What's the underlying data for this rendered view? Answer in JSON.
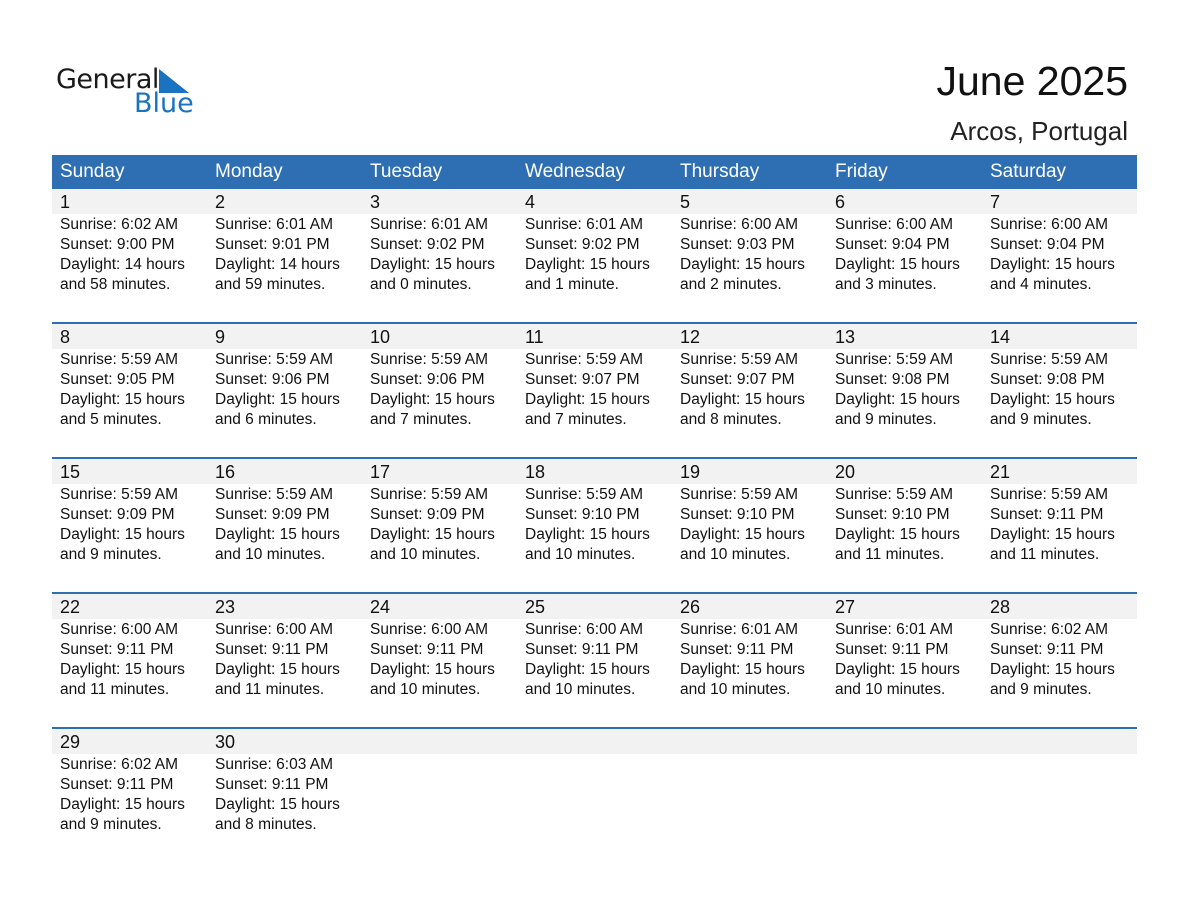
{
  "logo": {
    "word1": "General",
    "word2": "Blue",
    "color": "#1a73c0"
  },
  "title": "June 2025",
  "location": "Arcos, Portugal",
  "colors": {
    "header": "#2e6fb3",
    "band": "#f2f2f2"
  },
  "weekdays": [
    "Sunday",
    "Monday",
    "Tuesday",
    "Wednesday",
    "Thursday",
    "Friday",
    "Saturday"
  ],
  "days": [
    {
      "day": "1",
      "sunrise": "Sunrise: 6:02 AM",
      "sunset": "Sunset: 9:00 PM",
      "daylight": "Daylight: 14 hours",
      "minutes": "and 58 minutes."
    },
    {
      "day": "2",
      "sunrise": "Sunrise: 6:01 AM",
      "sunset": "Sunset: 9:01 PM",
      "daylight": "Daylight: 14 hours",
      "minutes": "and 59 minutes."
    },
    {
      "day": "3",
      "sunrise": "Sunrise: 6:01 AM",
      "sunset": "Sunset: 9:02 PM",
      "daylight": "Daylight: 15 hours",
      "minutes": "and 0 minutes."
    },
    {
      "day": "4",
      "sunrise": "Sunrise: 6:01 AM",
      "sunset": "Sunset: 9:02 PM",
      "daylight": "Daylight: 15 hours",
      "minutes": "and 1 minute."
    },
    {
      "day": "5",
      "sunrise": "Sunrise: 6:00 AM",
      "sunset": "Sunset: 9:03 PM",
      "daylight": "Daylight: 15 hours",
      "minutes": "and 2 minutes."
    },
    {
      "day": "6",
      "sunrise": "Sunrise: 6:00 AM",
      "sunset": "Sunset: 9:04 PM",
      "daylight": "Daylight: 15 hours",
      "minutes": "and 3 minutes."
    },
    {
      "day": "7",
      "sunrise": "Sunrise: 6:00 AM",
      "sunset": "Sunset: 9:04 PM",
      "daylight": "Daylight: 15 hours",
      "minutes": "and 4 minutes."
    },
    {
      "day": "8",
      "sunrise": "Sunrise: 5:59 AM",
      "sunset": "Sunset: 9:05 PM",
      "daylight": "Daylight: 15 hours",
      "minutes": "and 5 minutes."
    },
    {
      "day": "9",
      "sunrise": "Sunrise: 5:59 AM",
      "sunset": "Sunset: 9:06 PM",
      "daylight": "Daylight: 15 hours",
      "minutes": "and 6 minutes."
    },
    {
      "day": "10",
      "sunrise": "Sunrise: 5:59 AM",
      "sunset": "Sunset: 9:06 PM",
      "daylight": "Daylight: 15 hours",
      "minutes": "and 7 minutes."
    },
    {
      "day": "11",
      "sunrise": "Sunrise: 5:59 AM",
      "sunset": "Sunset: 9:07 PM",
      "daylight": "Daylight: 15 hours",
      "minutes": "and 7 minutes."
    },
    {
      "day": "12",
      "sunrise": "Sunrise: 5:59 AM",
      "sunset": "Sunset: 9:07 PM",
      "daylight": "Daylight: 15 hours",
      "minutes": "and 8 minutes."
    },
    {
      "day": "13",
      "sunrise": "Sunrise: 5:59 AM",
      "sunset": "Sunset: 9:08 PM",
      "daylight": "Daylight: 15 hours",
      "minutes": "and 9 minutes."
    },
    {
      "day": "14",
      "sunrise": "Sunrise: 5:59 AM",
      "sunset": "Sunset: 9:08 PM",
      "daylight": "Daylight: 15 hours",
      "minutes": "and 9 minutes."
    },
    {
      "day": "15",
      "sunrise": "Sunrise: 5:59 AM",
      "sunset": "Sunset: 9:09 PM",
      "daylight": "Daylight: 15 hours",
      "minutes": "and 9 minutes."
    },
    {
      "day": "16",
      "sunrise": "Sunrise: 5:59 AM",
      "sunset": "Sunset: 9:09 PM",
      "daylight": "Daylight: 15 hours",
      "minutes": "and 10 minutes."
    },
    {
      "day": "17",
      "sunrise": "Sunrise: 5:59 AM",
      "sunset": "Sunset: 9:09 PM",
      "daylight": "Daylight: 15 hours",
      "minutes": "and 10 minutes."
    },
    {
      "day": "18",
      "sunrise": "Sunrise: 5:59 AM",
      "sunset": "Sunset: 9:10 PM",
      "daylight": "Daylight: 15 hours",
      "minutes": "and 10 minutes."
    },
    {
      "day": "19",
      "sunrise": "Sunrise: 5:59 AM",
      "sunset": "Sunset: 9:10 PM",
      "daylight": "Daylight: 15 hours",
      "minutes": "and 10 minutes."
    },
    {
      "day": "20",
      "sunrise": "Sunrise: 5:59 AM",
      "sunset": "Sunset: 9:10 PM",
      "daylight": "Daylight: 15 hours",
      "minutes": "and 11 minutes."
    },
    {
      "day": "21",
      "sunrise": "Sunrise: 5:59 AM",
      "sunset": "Sunset: 9:11 PM",
      "daylight": "Daylight: 15 hours",
      "minutes": "and 11 minutes."
    },
    {
      "day": "22",
      "sunrise": "Sunrise: 6:00 AM",
      "sunset": "Sunset: 9:11 PM",
      "daylight": "Daylight: 15 hours",
      "minutes": "and 11 minutes."
    },
    {
      "day": "23",
      "sunrise": "Sunrise: 6:00 AM",
      "sunset": "Sunset: 9:11 PM",
      "daylight": "Daylight: 15 hours",
      "minutes": "and 11 minutes."
    },
    {
      "day": "24",
      "sunrise": "Sunrise: 6:00 AM",
      "sunset": "Sunset: 9:11 PM",
      "daylight": "Daylight: 15 hours",
      "minutes": "and 10 minutes."
    },
    {
      "day": "25",
      "sunrise": "Sunrise: 6:00 AM",
      "sunset": "Sunset: 9:11 PM",
      "daylight": "Daylight: 15 hours",
      "minutes": "and 10 minutes."
    },
    {
      "day": "26",
      "sunrise": "Sunrise: 6:01 AM",
      "sunset": "Sunset: 9:11 PM",
      "daylight": "Daylight: 15 hours",
      "minutes": "and 10 minutes."
    },
    {
      "day": "27",
      "sunrise": "Sunrise: 6:01 AM",
      "sunset": "Sunset: 9:11 PM",
      "daylight": "Daylight: 15 hours",
      "minutes": "and 10 minutes."
    },
    {
      "day": "28",
      "sunrise": "Sunrise: 6:02 AM",
      "sunset": "Sunset: 9:11 PM",
      "daylight": "Daylight: 15 hours",
      "minutes": "and 9 minutes."
    },
    {
      "day": "29",
      "sunrise": "Sunrise: 6:02 AM",
      "sunset": "Sunset: 9:11 PM",
      "daylight": "Daylight: 15 hours",
      "minutes": "and 9 minutes."
    },
    {
      "day": "30",
      "sunrise": "Sunrise: 6:03 AM",
      "sunset": "Sunset: 9:11 PM",
      "daylight": "Daylight: 15 hours",
      "minutes": "and 8 minutes."
    }
  ]
}
